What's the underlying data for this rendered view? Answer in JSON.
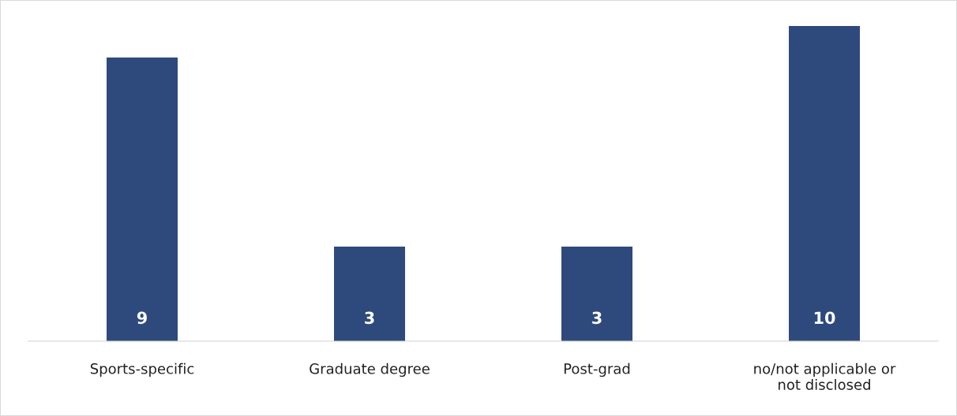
{
  "chart_data": {
    "type": "bar",
    "categories": [
      "Sports-specific",
      "Graduate degree",
      "Post-grad",
      "no/not applicable or\nnot disclosed"
    ],
    "values": [
      9,
      3,
      3,
      10
    ],
    "color": "#2e4a7d",
    "data_labels": true,
    "grid": false,
    "legend": false
  }
}
